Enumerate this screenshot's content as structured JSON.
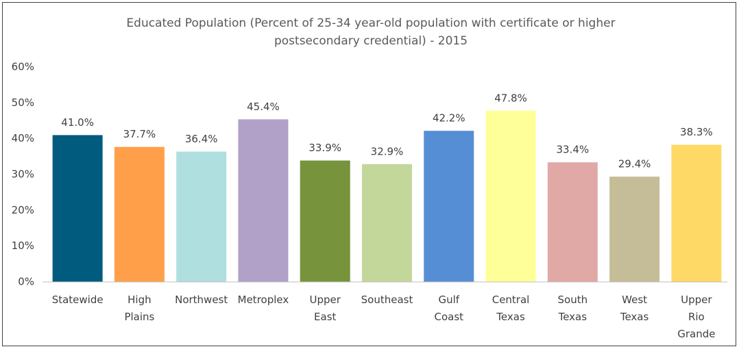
{
  "chart_data": {
    "type": "bar",
    "title": "Educated Population  (Percent of 25-34 year-old population with certificate or higher postsecondary credential) - 2015",
    "categories": [
      "Statewide",
      "High Plains",
      "Northwest",
      "Metroplex",
      "Upper East",
      "Southeast",
      "Gulf Coast",
      "Central Texas",
      "South Texas",
      "West Texas",
      "Upper Rio Grande"
    ],
    "values": [
      41.0,
      37.7,
      36.4,
      45.4,
      33.9,
      32.9,
      42.2,
      47.8,
      33.4,
      29.4,
      38.3
    ],
    "value_labels": [
      "41.0%",
      "37.7%",
      "36.4%",
      "45.4%",
      "33.9%",
      "32.9%",
      "42.2%",
      "47.8%",
      "33.4%",
      "29.4%",
      "38.3%"
    ],
    "colors": [
      "#005b7f",
      "#ff9f4a",
      "#b0dfe0",
      "#b1a0c7",
      "#77933c",
      "#c4d79b",
      "#558ed5",
      "#ffff99",
      "#e0a9a6",
      "#c4bd97",
      "#ffd966"
    ],
    "ylim": [
      0,
      60
    ],
    "yticks": [
      {
        "value": 0,
        "label": "0%"
      },
      {
        "value": 10,
        "label": "10%"
      },
      {
        "value": 20,
        "label": "20%"
      },
      {
        "value": 30,
        "label": "30%"
      },
      {
        "value": 40,
        "label": "40%"
      },
      {
        "value": 50,
        "label": "50%"
      },
      {
        "value": 60,
        "label": "60%"
      }
    ],
    "grid": false
  }
}
